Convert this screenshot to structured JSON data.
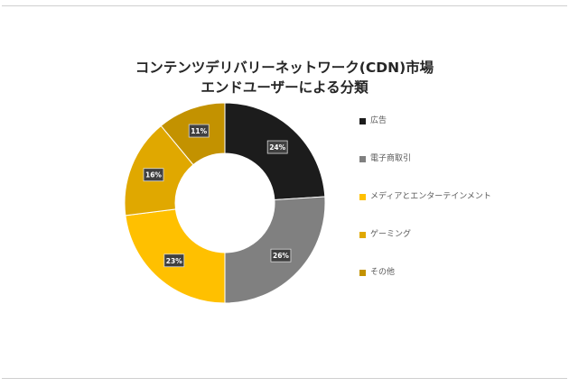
{
  "chart_data": {
    "type": "pie",
    "variant": "doughnut",
    "title": "コンテンツデリバリーネットワーク(CDN)市場 エンドユーザーによる分類",
    "title_lines": [
      "コンテンツデリバリーネットワーク(CDN)市場",
      "エンドユーザーによる分類"
    ],
    "categories": [
      "広告",
      "電子商取引",
      "メディアとエンターテインメント",
      "ゲーミング",
      "その他"
    ],
    "values": [
      24,
      26,
      23,
      16,
      11
    ],
    "value_labels": [
      "24%",
      "26%",
      "23%",
      "16%",
      "11%"
    ],
    "unit": "%",
    "colors": [
      "#1c1c1c",
      "#808080",
      "#ffc000",
      "#e0a800",
      "#c39200"
    ],
    "legend_position": "right",
    "data_label_style": "dark boxed"
  }
}
